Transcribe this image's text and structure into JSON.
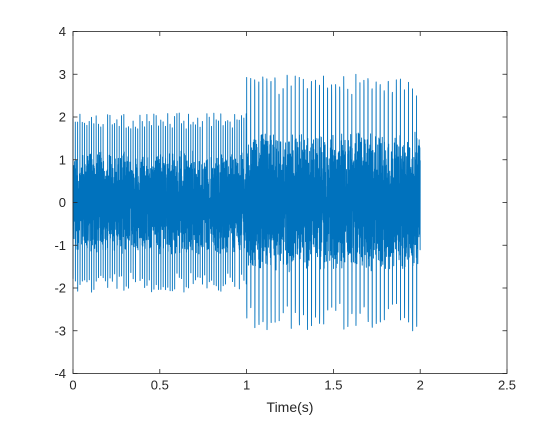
{
  "chart_data": {
    "type": "line",
    "xlabel": "Time(s)",
    "ylabel": "",
    "title": "",
    "xlim": [
      0,
      2.5
    ],
    "ylim": [
      -4,
      4
    ],
    "xticks": [
      0,
      0.5,
      1,
      1.5,
      2,
      2.5
    ],
    "xtick_labels": [
      "0",
      "0.5",
      "1",
      "1.5",
      "2",
      "2.5"
    ],
    "yticks": [
      -4,
      -3,
      -2,
      -1,
      0,
      1,
      2,
      3,
      4
    ],
    "ytick_labels": [
      "-4",
      "-3",
      "-2",
      "-1",
      "0",
      "1",
      "2",
      "3",
      "4"
    ],
    "grid": false,
    "series": [
      {
        "color": "#0072BD",
        "x_start": 0,
        "x_end": 2.0,
        "segments": [
          {
            "x_from": 0,
            "x_to": 1.0,
            "peak_max": 2.1,
            "peak_min": -2.1,
            "spike_period": 0.0133,
            "body_amplitude": 1.1
          },
          {
            "x_from": 1.0,
            "x_to": 2.0,
            "peak_max": 3.0,
            "peak_min": -3.0,
            "spike_period": 0.0233,
            "body_amplitude": 1.5
          }
        ]
      }
    ]
  }
}
